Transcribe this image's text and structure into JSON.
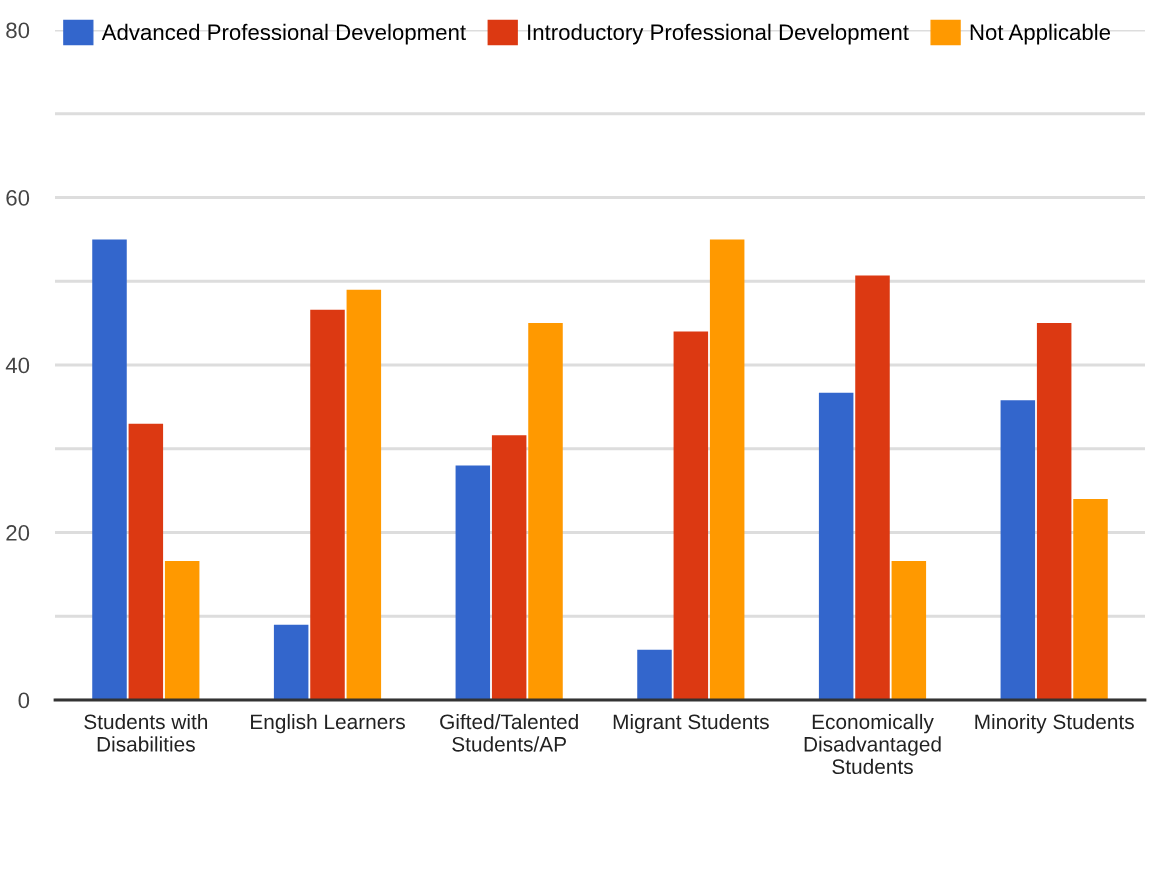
{
  "chart_data": {
    "type": "bar",
    "categories": [
      "Students with\nDisabilities",
      "English Learners",
      "Gifted/Talented\nStudents/AP",
      "Migrant Students",
      "Economically\nDisadvantaged\nStudents",
      "Minority Students"
    ],
    "series": [
      {
        "name": "Advanced Professional Development",
        "color": "#3366cc",
        "values": [
          55,
          9,
          28,
          6,
          36.7,
          35.8
        ]
      },
      {
        "name": "Introductory Professional Development",
        "color": "#dc3912",
        "values": [
          33,
          46.6,
          31.6,
          44,
          50.7,
          45
        ]
      },
      {
        "name": "Not Applicable",
        "color": "#ff9900",
        "values": [
          16.6,
          49,
          45,
          55,
          16.6,
          24
        ]
      }
    ],
    "ylim": [
      0,
      80
    ],
    "yticks": [
      0,
      {
        "value": 10,
        "label": null
      },
      20,
      {
        "value": 30,
        "label": null
      },
      40,
      {
        "value": 50,
        "label": null
      },
      60,
      {
        "value": 70,
        "label": null
      },
      80
    ],
    "grid": "y",
    "legend": "top"
  }
}
